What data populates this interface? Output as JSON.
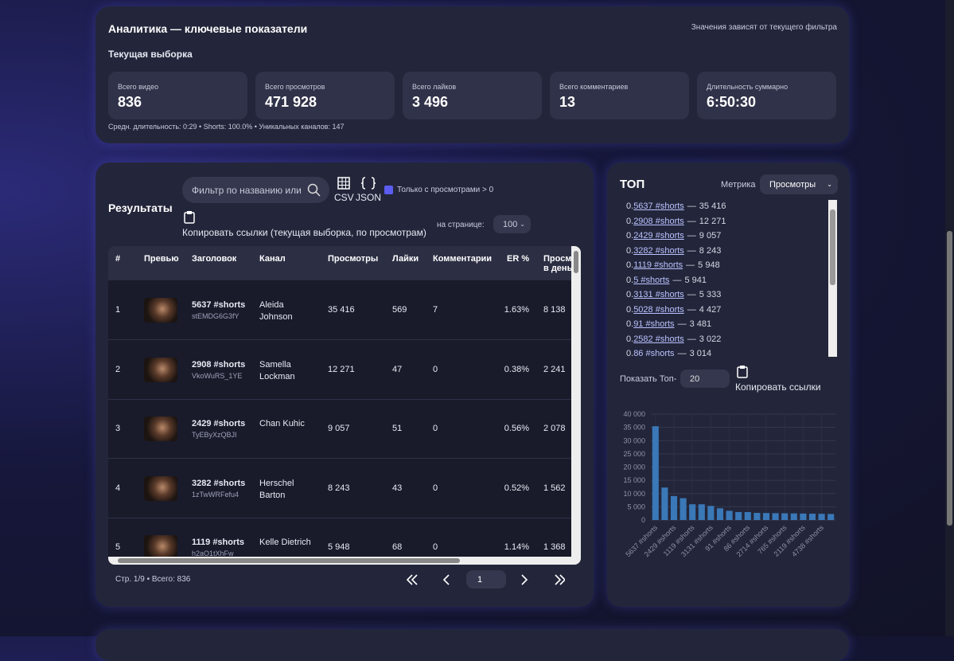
{
  "header": {
    "title": "Аналитика — ключевые показатели",
    "note": "Значения зависят от текущего фильтра",
    "subtitle": "Текущая выборка",
    "stats": [
      {
        "label": "Всего видео",
        "value": "836"
      },
      {
        "label": "Всего просмотров",
        "value": "471 928"
      },
      {
        "label": "Всего лайков",
        "value": "3 496"
      },
      {
        "label": "Всего комментариев",
        "value": "13"
      },
      {
        "label": "Длительность суммарно",
        "value": "6:50:30"
      }
    ],
    "footnote": "Средн. длительность: 0:29 • Shorts: 100.0% • Уникальных каналов: 147"
  },
  "results": {
    "title": "Результаты",
    "search_placeholder": "Фильтр по названию или",
    "csv": "CSV",
    "json": "JSON",
    "only_views": "Только с просмотрами > 0",
    "copy": "Копировать ссылки (текущая выборка, по просмотрам)",
    "per_page_label": "на странице:",
    "per_page": "100",
    "table": {
      "columns": [
        "#",
        "Превью",
        "Заголовок",
        "Канал",
        "Просмотры",
        "Лайки",
        "Комментарии",
        "ER %",
        "Просмотров в день"
      ],
      "rows": [
        [
          "1",
          "5637 #shorts",
          "stEMDG6G3fY",
          "Aleida Johnson",
          "35 416",
          "569",
          "7",
          "1.63%",
          "8 138"
        ],
        [
          "2",
          "2908 #shorts",
          "VkoWuRS_1YE",
          "Samella Lockman",
          "12 271",
          "47",
          "0",
          "0.38%",
          "2 241"
        ],
        [
          "3",
          "2429 #shorts",
          "TyEByXzQBJI",
          "Chan Kuhic",
          "9 057",
          "51",
          "0",
          "0.56%",
          "2 078"
        ],
        [
          "4",
          "3282 #shorts",
          "1zTwWRFefu4",
          "Herschel Barton",
          "8 243",
          "43",
          "0",
          "0.52%",
          "1 562"
        ],
        [
          "5",
          "1119 #shorts",
          "h2aO1tXhFw",
          "Kelle Dietrich",
          "5 948",
          "68",
          "0",
          "1.14%",
          "1 368"
        ]
      ]
    },
    "footer": "Стр. 1/9 • Всего: 836",
    "page": "1"
  },
  "top": {
    "title": "ТОП",
    "metric_label": "Метрика",
    "metric": "Просмотры",
    "sep": "—",
    "items": [
      {
        "title": "5637 #shorts",
        "value": "35 416"
      },
      {
        "title": "2908 #shorts",
        "value": "12 271"
      },
      {
        "title": "2429 #shorts",
        "value": "9 057"
      },
      {
        "title": "3282 #shorts",
        "value": "8 243"
      },
      {
        "title": "1119 #shorts",
        "value": "5 948"
      },
      {
        "title": "5 #shorts",
        "value": "5 941"
      },
      {
        "title": "3131 #shorts",
        "value": "5 333"
      },
      {
        "title": "5028 #shorts",
        "value": "4 427"
      },
      {
        "title": "91 #shorts",
        "value": "3 481"
      },
      {
        "title": "2582 #shorts",
        "value": "3 022"
      },
      {
        "title": "86 #shorts",
        "value": "3 014"
      }
    ],
    "show_top_label": "Показать Топ-",
    "show_top": "20",
    "copy": "Копировать ссылки"
  },
  "chart_data": {
    "type": "bar",
    "categories": [
      "5637 #shorts",
      null,
      "2429 #shorts",
      null,
      "1119 #shorts",
      null,
      "3131 #shorts",
      null,
      "91 #shorts",
      null,
      "86 #shorts",
      null,
      "2714 #shorts",
      null,
      "765 #shorts",
      null,
      "2119 #shorts",
      null,
      "4738 #shorts",
      null
    ],
    "values": [
      35416,
      12271,
      9057,
      8243,
      5948,
      5941,
      5333,
      4427,
      3481,
      3022,
      3014,
      2700,
      2650,
      2600,
      2550,
      2500,
      2450,
      2400,
      2350,
      2300
    ],
    "color": "#3a78b8",
    "ylim": [
      0,
      40000
    ],
    "yticks": [
      0,
      {
        "value": 5000,
        "label": "5 000"
      },
      {
        "value": 10000,
        "label": "10 000"
      },
      {
        "value": 15000,
        "label": "15 000"
      },
      {
        "value": 20000,
        "label": "20 000"
      },
      {
        "value": 25000,
        "label": "25 000"
      },
      {
        "value": 30000,
        "label": "30 000"
      },
      {
        "value": 35000,
        "label": "35 000"
      },
      {
        "value": 40000,
        "label": "40 000"
      }
    ],
    "grid": true
  }
}
